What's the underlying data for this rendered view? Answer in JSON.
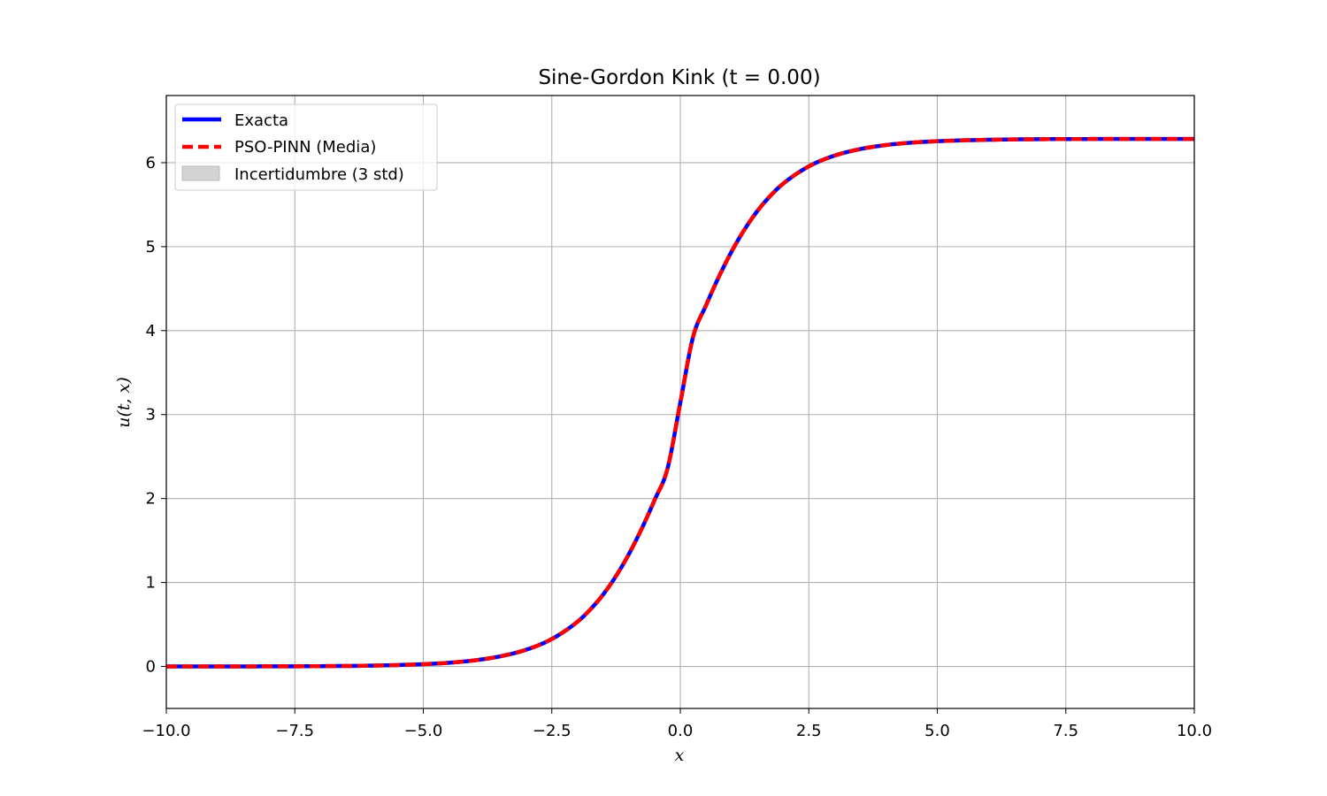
{
  "chart_data": {
    "type": "line",
    "title": "Sine-Gordon Kink (t = 0.00)",
    "xlabel": "x",
    "ylabel": "u(t, x)",
    "xlim": [
      -10,
      10
    ],
    "ylim": [
      -0.5,
      6.8
    ],
    "grid": true,
    "legend_position": "top-left",
    "x_ticks": [
      -10,
      -7.5,
      -5,
      -2.5,
      0,
      2.5,
      5,
      7.5,
      10
    ],
    "x_tick_labels": [
      "−10.0",
      "−7.5",
      "−5.0",
      "−2.5",
      "0.0",
      "2.5",
      "5.0",
      "7.5",
      "10.0"
    ],
    "y_ticks": [
      0,
      1,
      2,
      3,
      4,
      5,
      6
    ],
    "y_tick_labels": [
      "0",
      "1",
      "2",
      "3",
      "4",
      "5",
      "6"
    ],
    "series": [
      {
        "name": "Exacta",
        "color": "#0000ff",
        "style": "solid",
        "x": [
          -10,
          -9,
          -8,
          -7,
          -6,
          -5,
          -4.5,
          -4,
          -3.5,
          -3,
          -2.5,
          -2,
          -1.75,
          -1.5,
          -1.25,
          -1,
          -0.75,
          -0.5,
          -0.25,
          0,
          0.25,
          0.5,
          0.75,
          1,
          1.25,
          1.5,
          1.75,
          2,
          2.5,
          3,
          3.5,
          4,
          4.5,
          5,
          6,
          7,
          8,
          9,
          10
        ],
        "values": [
          0.0002,
          0.0005,
          0.0013,
          0.0036,
          0.0099,
          0.027,
          0.044,
          0.073,
          0.121,
          0.199,
          0.327,
          0.533,
          0.679,
          0.858,
          1.078,
          1.339,
          1.642,
          1.983,
          2.355,
          3.142,
          3.929,
          4.3,
          4.641,
          4.944,
          5.205,
          5.425,
          5.604,
          5.75,
          5.956,
          6.084,
          6.162,
          6.21,
          6.239,
          6.256,
          6.273,
          6.28,
          6.282,
          6.283,
          6.283
        ]
      },
      {
        "name": "PSO-PINN (Media)",
        "color": "#ff0000",
        "style": "dashed",
        "x": [
          -10,
          -9,
          -8,
          -7,
          -6,
          -5,
          -4.5,
          -4,
          -3.5,
          -3,
          -2.5,
          -2,
          -1.75,
          -1.5,
          -1.25,
          -1,
          -0.75,
          -0.5,
          -0.25,
          0,
          0.25,
          0.5,
          0.75,
          1,
          1.25,
          1.5,
          1.75,
          2,
          2.5,
          3,
          3.5,
          4,
          4.5,
          5,
          6,
          7,
          8,
          9,
          10
        ],
        "values": [
          0.0002,
          0.0005,
          0.0013,
          0.0036,
          0.0099,
          0.027,
          0.044,
          0.073,
          0.121,
          0.199,
          0.327,
          0.533,
          0.679,
          0.858,
          1.078,
          1.339,
          1.642,
          1.983,
          2.355,
          3.142,
          3.929,
          4.3,
          4.641,
          4.944,
          5.205,
          5.425,
          5.604,
          5.75,
          5.956,
          6.084,
          6.162,
          6.21,
          6.239,
          6.256,
          6.273,
          6.28,
          6.282,
          6.283,
          6.283
        ]
      }
    ],
    "band": {
      "name": "Incertidumbre (3 std)",
      "color": "#d3d3d3"
    }
  }
}
